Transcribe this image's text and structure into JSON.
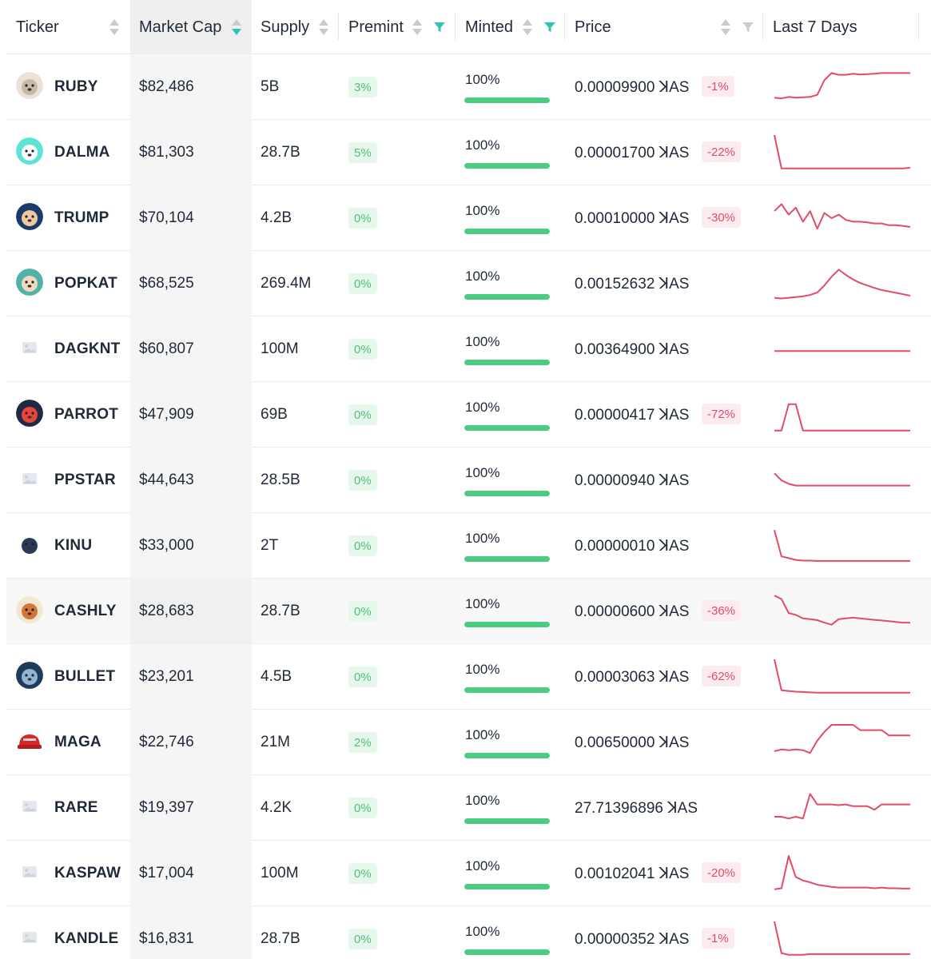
{
  "header": {
    "ticker": "Ticker",
    "market_cap": "Market Cap",
    "supply": "Supply",
    "premint": "Premint",
    "minted": "Minted",
    "price": "Price",
    "last7": "Last 7 Days"
  },
  "colors": {
    "accent": "#2ec4b6",
    "positive_bg": "#e6f7ec",
    "positive_text": "#53c07f",
    "negative_bg": "#fdecef",
    "negative_text": "#e24b69",
    "bar_fill": "#4ccb82",
    "spark": "#e24b69"
  },
  "rows": [
    {
      "ticker": "RUBY",
      "logo": "dog-photo-icon",
      "mcap": "$82,486",
      "supply": "5B",
      "premint": "3%",
      "minted": "100%",
      "minted_fraction": 1.0,
      "price": "0.00009900 ꓘAS",
      "change": "-1%",
      "spark": [
        0.8,
        0.82,
        0.78,
        0.8,
        0.79,
        0.78,
        0.72,
        0.3,
        0.1,
        0.15,
        0.15,
        0.12,
        0.14,
        0.13,
        0.12,
        0.1,
        0.1,
        0.1,
        0.1,
        0.1
      ]
    },
    {
      "ticker": "DALMA",
      "logo": "dalmatian-icon",
      "mcap": "$81,303",
      "supply": "28.7B",
      "premint": "5%",
      "minted": "100%",
      "minted_fraction": 1.0,
      "price": "0.00001700 ꓘAS",
      "change": "-22%",
      "spark": [
        0.0,
        0.95,
        0.95,
        0.95,
        0.95,
        0.95,
        0.95,
        0.95,
        0.95,
        0.95,
        0.95,
        0.95,
        0.95,
        0.95,
        0.95,
        0.95,
        0.95,
        0.95,
        0.95,
        0.93
      ]
    },
    {
      "ticker": "TRUMP",
      "logo": "trump-portrait-icon",
      "mcap": "$70,104",
      "supply": "4.2B",
      "premint": "0%",
      "minted": "100%",
      "minted_fraction": 1.0,
      "price": "0.00010000 ꓘAS",
      "change": "-30%",
      "spark": [
        0.3,
        0.1,
        0.4,
        0.2,
        0.6,
        0.3,
        0.8,
        0.35,
        0.5,
        0.4,
        0.55,
        0.6,
        0.6,
        0.62,
        0.65,
        0.65,
        0.7,
        0.7,
        0.72,
        0.75
      ]
    },
    {
      "ticker": "POPKAT",
      "logo": "cat-face-icon",
      "mcap": "$68,525",
      "supply": "269.4M",
      "premint": "0%",
      "minted": "100%",
      "minted_fraction": 1.0,
      "price": "0.00152632 ꓘAS",
      "change": "",
      "spark": [
        0.9,
        0.92,
        0.9,
        0.88,
        0.86,
        0.82,
        0.75,
        0.55,
        0.3,
        0.1,
        0.25,
        0.38,
        0.48,
        0.55,
        0.62,
        0.68,
        0.72,
        0.76,
        0.8,
        0.84
      ]
    },
    {
      "ticker": "DAGKNT",
      "logo": "image-placeholder-icon",
      "mcap": "$60,807",
      "supply": "100M",
      "premint": "0%",
      "minted": "100%",
      "minted_fraction": 1.0,
      "price": "0.00364900 ꓘAS",
      "change": "",
      "spark": [
        0.55,
        0.55,
        0.55,
        0.55,
        0.55,
        0.55,
        0.55,
        0.55,
        0.55,
        0.55,
        0.55,
        0.55,
        0.55,
        0.55,
        0.55,
        0.55,
        0.55,
        0.55,
        0.55,
        0.55
      ]
    },
    {
      "ticker": "PARROT",
      "logo": "parrot-icon",
      "mcap": "$47,909",
      "supply": "69B",
      "premint": "0%",
      "minted": "100%",
      "minted_fraction": 1.0,
      "price": "0.00000417 ꓘAS",
      "change": "-72%",
      "spark": [
        0.95,
        0.95,
        0.2,
        0.2,
        0.95,
        0.95,
        0.95,
        0.95,
        0.95,
        0.95,
        0.95,
        0.95,
        0.95,
        0.95,
        0.95,
        0.95,
        0.95,
        0.95,
        0.95,
        0.95
      ]
    },
    {
      "ticker": "PPSTAR",
      "logo": "image-placeholder-icon",
      "mcap": "$44,643",
      "supply": "28.5B",
      "premint": "0%",
      "minted": "100%",
      "minted_fraction": 1.0,
      "price": "0.00000940 ꓘAS",
      "change": "",
      "spark": [
        0.3,
        0.5,
        0.6,
        0.65,
        0.65,
        0.65,
        0.65,
        0.65,
        0.65,
        0.65,
        0.65,
        0.65,
        0.65,
        0.65,
        0.65,
        0.65,
        0.65,
        0.65,
        0.65,
        0.65
      ]
    },
    {
      "ticker": "KINU",
      "logo": "dog-sketch-icon",
      "mcap": "$33,000",
      "supply": "2T",
      "premint": "0%",
      "minted": "100%",
      "minted_fraction": 1.0,
      "price": "0.00000010 ꓘAS",
      "change": "",
      "spark": [
        0.05,
        0.8,
        0.85,
        0.9,
        0.92,
        0.92,
        0.93,
        0.93,
        0.93,
        0.93,
        0.93,
        0.93,
        0.93,
        0.93,
        0.93,
        0.93,
        0.93,
        0.93,
        0.93,
        0.93
      ]
    },
    {
      "ticker": "CASHLY",
      "logo": "fox-icon",
      "mcap": "$28,683",
      "supply": "28.7B",
      "premint": "0%",
      "minted": "100%",
      "minted_fraction": 1.0,
      "price": "0.00000600 ꓘAS",
      "change": "-36%",
      "spark": [
        0.05,
        0.15,
        0.55,
        0.6,
        0.7,
        0.72,
        0.75,
        0.82,
        0.88,
        0.72,
        0.7,
        0.68,
        0.7,
        0.72,
        0.74,
        0.76,
        0.78,
        0.8,
        0.82,
        0.82
      ]
    },
    {
      "ticker": "BULLET",
      "logo": "bullet-icon",
      "mcap": "$23,201",
      "supply": "4.5B",
      "premint": "0%",
      "minted": "100%",
      "minted_fraction": 1.0,
      "price": "0.00003063 ꓘAS",
      "change": "-62%",
      "spark": [
        0.0,
        0.88,
        0.9,
        0.92,
        0.93,
        0.94,
        0.95,
        0.95,
        0.95,
        0.95,
        0.95,
        0.95,
        0.95,
        0.95,
        0.95,
        0.95,
        0.95,
        0.95,
        0.95,
        0.95
      ]
    },
    {
      "ticker": "MAGA",
      "logo": "red-cap-icon",
      "mcap": "$22,746",
      "supply": "21M",
      "premint": "2%",
      "minted": "100%",
      "minted_fraction": 1.0,
      "price": "0.00650000 ꓘAS",
      "change": "",
      "spark": [
        0.75,
        0.7,
        0.72,
        0.7,
        0.72,
        0.8,
        0.45,
        0.2,
        0.0,
        0.0,
        0.0,
        0.0,
        0.15,
        0.15,
        0.15,
        0.15,
        0.3,
        0.3,
        0.3,
        0.3
      ]
    },
    {
      "ticker": "RARE",
      "logo": "image-placeholder-icon",
      "mcap": "$19,397",
      "supply": "4.2K",
      "premint": "0%",
      "minted": "100%",
      "minted_fraction": 1.0,
      "price": "27.71396896 ꓘAS",
      "change": "",
      "spark": [
        0.75,
        0.75,
        0.8,
        0.75,
        0.8,
        0.1,
        0.4,
        0.4,
        0.4,
        0.42,
        0.4,
        0.45,
        0.45,
        0.45,
        0.55,
        0.4,
        0.4,
        0.4,
        0.4,
        0.4
      ]
    },
    {
      "ticker": "KASPAW",
      "logo": "image-placeholder-icon",
      "mcap": "$17,004",
      "supply": "100M",
      "premint": "0%",
      "minted": "100%",
      "minted_fraction": 1.0,
      "price": "0.00102041 ꓘAS",
      "change": "-20%",
      "spark": [
        0.95,
        0.92,
        0.0,
        0.6,
        0.7,
        0.75,
        0.82,
        0.85,
        0.88,
        0.9,
        0.9,
        0.9,
        0.9,
        0.9,
        0.92,
        0.9,
        0.92,
        0.92,
        0.93,
        0.93
      ]
    },
    {
      "ticker": "KANDLE",
      "logo": "image-placeholder-icon",
      "mcap": "$16,831",
      "supply": "28.7B",
      "premint": "0%",
      "minted": "100%",
      "minted_fraction": 1.0,
      "price": "0.00000352 ꓘAS",
      "change": "-1%",
      "spark": [
        0.0,
        0.9,
        0.95,
        0.95,
        0.95,
        0.93,
        0.93,
        0.93,
        0.93,
        0.93,
        0.93,
        0.93,
        0.93,
        0.93,
        0.93,
        0.93,
        0.93,
        0.93,
        0.93,
        0.93
      ]
    }
  ]
}
